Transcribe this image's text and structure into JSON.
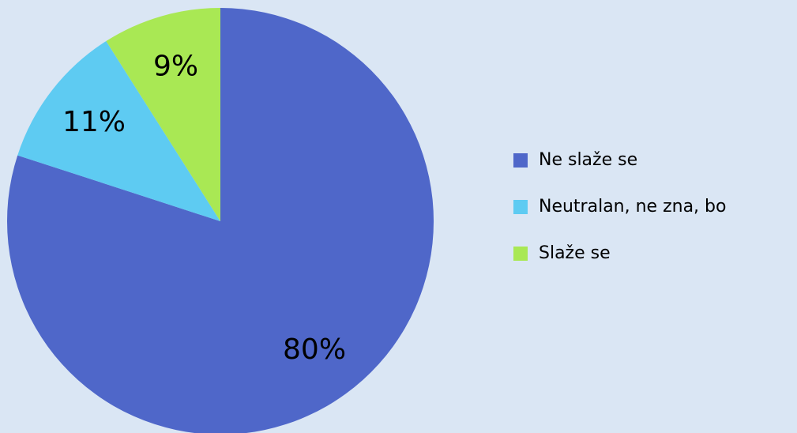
{
  "chart_data": {
    "type": "pie",
    "categories": [
      "Ne slaže se",
      "Neutralan, ne zna, bo",
      "Slaže se"
    ],
    "values": [
      80,
      11,
      9
    ],
    "value_labels": [
      "80%",
      "11%",
      "9%"
    ],
    "colors": [
      "#4f67c9",
      "#5ecbf2",
      "#a9e854"
    ],
    "legend": "right"
  }
}
